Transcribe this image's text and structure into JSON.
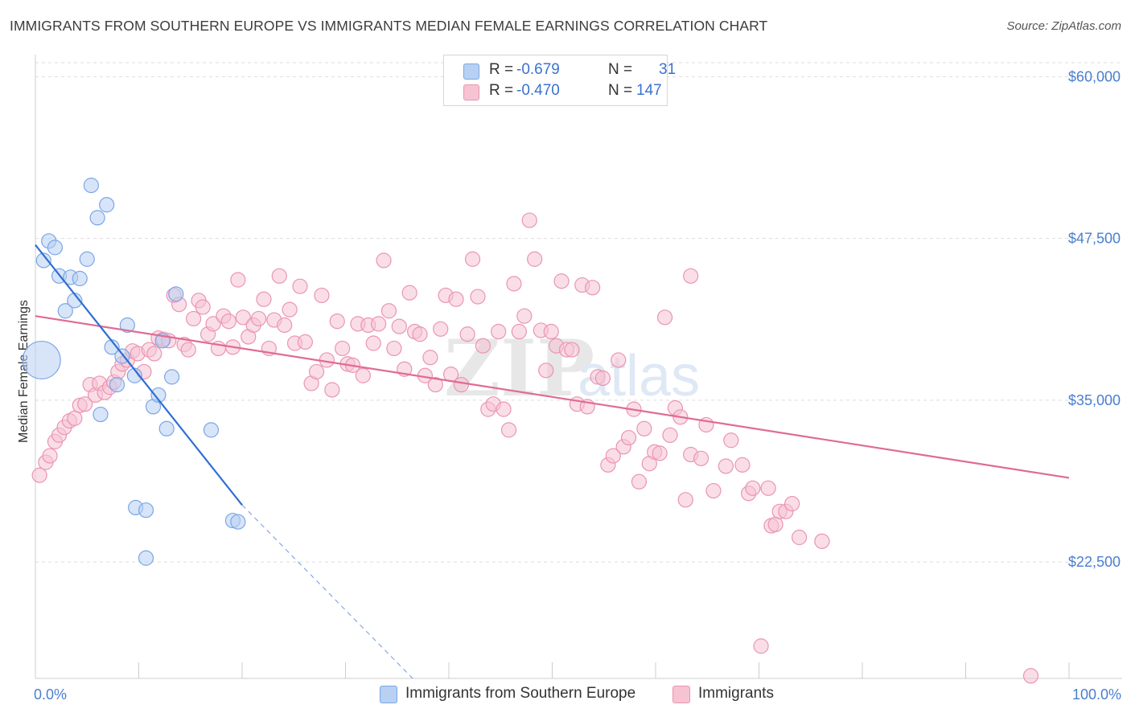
{
  "title": "IMMIGRANTS FROM SOUTHERN EUROPE VS IMMIGRANTS MEDIAN FEMALE EARNINGS CORRELATION CHART",
  "source": "Source: ZipAtlas.com",
  "watermark": {
    "zip": "ZIP",
    "atlas": "atlas"
  },
  "colors": {
    "blue_fill": "#b8d0f2",
    "blue_stroke": "#7aa6e6",
    "blue_line": "#2f6fd3",
    "pink_fill": "#f6c3d3",
    "pink_stroke": "#ea95b1",
    "pink_line": "#e06b96",
    "tick_color": "#4a7fd0",
    "grid": "#dddddd"
  },
  "legend": {
    "rows": [
      {
        "r_label": "R =",
        "r_value": "-0.679",
        "n_label": "N =",
        "n_value": "31",
        "color": "blue"
      },
      {
        "r_label": "R =",
        "r_value": "-0.470",
        "n_label": "N =",
        "n_value": "147",
        "color": "pink"
      }
    ]
  },
  "bottom_legend": {
    "items": [
      {
        "label": "Immigrants from Southern Europe",
        "color": "blue"
      },
      {
        "label": "Immigrants",
        "color": "pink"
      }
    ]
  },
  "chart_data": {
    "type": "scatter",
    "ylabel": "Median Female Earnings",
    "xlim": [
      0,
      100
    ],
    "ylim": [
      13500,
      61700
    ],
    "x_tick_labels": [
      {
        "value": 0,
        "label": "0.0%"
      },
      {
        "value": 100,
        "label": "100.0%"
      }
    ],
    "x_minor_ticks": [
      0,
      10,
      20,
      30,
      40,
      50,
      60,
      70,
      80,
      90,
      100
    ],
    "y_ticks": [
      {
        "value": 60000,
        "label": "$60,000"
      },
      {
        "value": 47500,
        "label": "$47,500"
      },
      {
        "value": 35000,
        "label": "$35,000"
      },
      {
        "value": 22500,
        "label": "$22,500"
      }
    ],
    "series": [
      {
        "name": "Immigrants from Southern Europe",
        "color": "blue",
        "trend": {
          "x0": 0,
          "y0": 47000,
          "x1": 20,
          "y1": 26900,
          "dash_to_x": 36.5,
          "dash_to_y": 13500
        },
        "points": [
          {
            "x": 0.6,
            "y": 38100,
            "s": 2.6
          },
          {
            "x": 0.8,
            "y": 45800,
            "s": 1
          },
          {
            "x": 1.3,
            "y": 47300,
            "s": 1
          },
          {
            "x": 1.9,
            "y": 46800,
            "s": 1
          },
          {
            "x": 2.3,
            "y": 44600,
            "s": 1
          },
          {
            "x": 2.9,
            "y": 41900,
            "s": 1
          },
          {
            "x": 3.4,
            "y": 44500,
            "s": 1
          },
          {
            "x": 3.8,
            "y": 42700,
            "s": 1
          },
          {
            "x": 4.3,
            "y": 44400,
            "s": 1
          },
          {
            "x": 5.0,
            "y": 45900,
            "s": 1
          },
          {
            "x": 5.4,
            "y": 51600,
            "s": 1
          },
          {
            "x": 6.0,
            "y": 49100,
            "s": 1
          },
          {
            "x": 6.9,
            "y": 50100,
            "s": 1
          },
          {
            "x": 6.3,
            "y": 33900,
            "s": 1
          },
          {
            "x": 7.4,
            "y": 39100,
            "s": 1
          },
          {
            "x": 7.9,
            "y": 36200,
            "s": 1
          },
          {
            "x": 8.4,
            "y": 38400,
            "s": 1
          },
          {
            "x": 8.9,
            "y": 40800,
            "s": 1
          },
          {
            "x": 9.7,
            "y": 26700,
            "s": 1
          },
          {
            "x": 9.6,
            "y": 36900,
            "s": 1
          },
          {
            "x": 10.7,
            "y": 26500,
            "s": 1
          },
          {
            "x": 10.7,
            "y": 22800,
            "s": 1
          },
          {
            "x": 11.4,
            "y": 34500,
            "s": 1
          },
          {
            "x": 11.9,
            "y": 35400,
            "s": 1
          },
          {
            "x": 12.3,
            "y": 39600,
            "s": 1
          },
          {
            "x": 12.7,
            "y": 32800,
            "s": 1
          },
          {
            "x": 13.2,
            "y": 36800,
            "s": 1
          },
          {
            "x": 13.6,
            "y": 43200,
            "s": 1
          },
          {
            "x": 17.0,
            "y": 32700,
            "s": 1
          },
          {
            "x": 19.1,
            "y": 25700,
            "s": 1
          },
          {
            "x": 19.6,
            "y": 25600,
            "s": 1
          }
        ]
      },
      {
        "name": "Immigrants",
        "color": "pink",
        "trend": {
          "x0": 0,
          "y0": 41500,
          "x1": 100,
          "y1": 29000
        },
        "points": [
          {
            "x": 0.4,
            "y": 29200
          },
          {
            "x": 1.0,
            "y": 30200
          },
          {
            "x": 1.4,
            "y": 30700
          },
          {
            "x": 1.9,
            "y": 31800
          },
          {
            "x": 2.3,
            "y": 32300
          },
          {
            "x": 2.8,
            "y": 32900
          },
          {
            "x": 3.3,
            "y": 33400
          },
          {
            "x": 3.8,
            "y": 33600
          },
          {
            "x": 4.3,
            "y": 34600
          },
          {
            "x": 4.8,
            "y": 34700
          },
          {
            "x": 5.3,
            "y": 36200
          },
          {
            "x": 5.8,
            "y": 35400
          },
          {
            "x": 6.2,
            "y": 36300
          },
          {
            "x": 6.7,
            "y": 35600
          },
          {
            "x": 7.2,
            "y": 36000
          },
          {
            "x": 7.6,
            "y": 36400
          },
          {
            "x": 8.0,
            "y": 37200
          },
          {
            "x": 8.4,
            "y": 37800
          },
          {
            "x": 8.9,
            "y": 38100
          },
          {
            "x": 9.4,
            "y": 38800
          },
          {
            "x": 9.9,
            "y": 38600
          },
          {
            "x": 10.5,
            "y": 37200
          },
          {
            "x": 11.0,
            "y": 38900
          },
          {
            "x": 11.5,
            "y": 38600
          },
          {
            "x": 11.9,
            "y": 39800
          },
          {
            "x": 12.4,
            "y": 39700
          },
          {
            "x": 12.9,
            "y": 39600
          },
          {
            "x": 13.4,
            "y": 43100
          },
          {
            "x": 13.9,
            "y": 42400
          },
          {
            "x": 14.4,
            "y": 39300
          },
          {
            "x": 14.8,
            "y": 38900
          },
          {
            "x": 15.3,
            "y": 41300
          },
          {
            "x": 15.8,
            "y": 42700
          },
          {
            "x": 16.2,
            "y": 42200
          },
          {
            "x": 16.7,
            "y": 40100
          },
          {
            "x": 17.2,
            "y": 40900
          },
          {
            "x": 17.7,
            "y": 39000
          },
          {
            "x": 18.2,
            "y": 41500
          },
          {
            "x": 18.7,
            "y": 41100
          },
          {
            "x": 19.1,
            "y": 39100
          },
          {
            "x": 19.6,
            "y": 44300
          },
          {
            "x": 20.1,
            "y": 41400
          },
          {
            "x": 20.6,
            "y": 39900
          },
          {
            "x": 21.1,
            "y": 40800
          },
          {
            "x": 21.6,
            "y": 41300
          },
          {
            "x": 22.1,
            "y": 42800
          },
          {
            "x": 22.6,
            "y": 39000
          },
          {
            "x": 23.1,
            "y": 41200
          },
          {
            "x": 23.6,
            "y": 44600
          },
          {
            "x": 24.1,
            "y": 40800
          },
          {
            "x": 24.6,
            "y": 42000
          },
          {
            "x": 25.1,
            "y": 39400
          },
          {
            "x": 25.6,
            "y": 43800
          },
          {
            "x": 26.1,
            "y": 39500
          },
          {
            "x": 26.7,
            "y": 36300
          },
          {
            "x": 27.2,
            "y": 37200
          },
          {
            "x": 27.7,
            "y": 43100
          },
          {
            "x": 28.2,
            "y": 38100
          },
          {
            "x": 28.7,
            "y": 35800
          },
          {
            "x": 29.2,
            "y": 41100
          },
          {
            "x": 29.7,
            "y": 39000
          },
          {
            "x": 30.2,
            "y": 37800
          },
          {
            "x": 30.7,
            "y": 37700
          },
          {
            "x": 31.2,
            "y": 40900
          },
          {
            "x": 31.7,
            "y": 36900
          },
          {
            "x": 32.2,
            "y": 40800
          },
          {
            "x": 32.7,
            "y": 39400
          },
          {
            "x": 33.2,
            "y": 40900
          },
          {
            "x": 33.7,
            "y": 45800
          },
          {
            "x": 34.2,
            "y": 41900
          },
          {
            "x": 34.7,
            "y": 39000
          },
          {
            "x": 35.2,
            "y": 40700
          },
          {
            "x": 35.7,
            "y": 37400
          },
          {
            "x": 36.2,
            "y": 43300
          },
          {
            "x": 36.7,
            "y": 40300
          },
          {
            "x": 37.2,
            "y": 40100
          },
          {
            "x": 37.7,
            "y": 36900
          },
          {
            "x": 38.2,
            "y": 38300
          },
          {
            "x": 38.7,
            "y": 36200
          },
          {
            "x": 39.2,
            "y": 40500
          },
          {
            "x": 39.7,
            "y": 43100
          },
          {
            "x": 40.2,
            "y": 37000
          },
          {
            "x": 40.7,
            "y": 42800
          },
          {
            "x": 41.2,
            "y": 36200
          },
          {
            "x": 41.8,
            "y": 40100
          },
          {
            "x": 42.3,
            "y": 45900
          },
          {
            "x": 42.8,
            "y": 43000
          },
          {
            "x": 43.3,
            "y": 39200
          },
          {
            "x": 43.8,
            "y": 34300
          },
          {
            "x": 44.3,
            "y": 34700
          },
          {
            "x": 44.8,
            "y": 40300
          },
          {
            "x": 45.3,
            "y": 34300
          },
          {
            "x": 45.8,
            "y": 32700
          },
          {
            "x": 46.3,
            "y": 44000
          },
          {
            "x": 46.8,
            "y": 40300
          },
          {
            "x": 47.3,
            "y": 41500
          },
          {
            "x": 47.8,
            "y": 48900
          },
          {
            "x": 48.3,
            "y": 45900
          },
          {
            "x": 48.9,
            "y": 40400
          },
          {
            "x": 49.4,
            "y": 37300
          },
          {
            "x": 49.9,
            "y": 40300
          },
          {
            "x": 50.4,
            "y": 39200
          },
          {
            "x": 50.9,
            "y": 44200
          },
          {
            "x": 51.4,
            "y": 38900
          },
          {
            "x": 51.9,
            "y": 38900
          },
          {
            "x": 52.4,
            "y": 34700
          },
          {
            "x": 52.9,
            "y": 43900
          },
          {
            "x": 53.4,
            "y": 34500
          },
          {
            "x": 53.9,
            "y": 43700
          },
          {
            "x": 54.4,
            "y": 36800
          },
          {
            "x": 54.9,
            "y": 36700
          },
          {
            "x": 55.4,
            "y": 30000
          },
          {
            "x": 55.9,
            "y": 30700
          },
          {
            "x": 56.4,
            "y": 38100
          },
          {
            "x": 56.9,
            "y": 31400
          },
          {
            "x": 57.4,
            "y": 32100
          },
          {
            "x": 57.9,
            "y": 34300
          },
          {
            "x": 58.4,
            "y": 28700
          },
          {
            "x": 58.9,
            "y": 32800
          },
          {
            "x": 59.4,
            "y": 30100
          },
          {
            "x": 59.9,
            "y": 31000
          },
          {
            "x": 60.4,
            "y": 30900
          },
          {
            "x": 60.9,
            "y": 41400
          },
          {
            "x": 61.4,
            "y": 32300
          },
          {
            "x": 61.9,
            "y": 34400
          },
          {
            "x": 62.4,
            "y": 33700
          },
          {
            "x": 62.9,
            "y": 27300
          },
          {
            "x": 63.4,
            "y": 44600
          },
          {
            "x": 63.4,
            "y": 30800
          },
          {
            "x": 64.4,
            "y": 30500
          },
          {
            "x": 64.9,
            "y": 33100
          },
          {
            "x": 65.6,
            "y": 28000
          },
          {
            "x": 66.8,
            "y": 29900
          },
          {
            "x": 67.3,
            "y": 31900
          },
          {
            "x": 68.4,
            "y": 30000
          },
          {
            "x": 69.0,
            "y": 27800
          },
          {
            "x": 69.4,
            "y": 28200
          },
          {
            "x": 70.2,
            "y": 16000
          },
          {
            "x": 70.9,
            "y": 28200
          },
          {
            "x": 71.2,
            "y": 25300
          },
          {
            "x": 71.6,
            "y": 25400
          },
          {
            "x": 72.0,
            "y": 26400
          },
          {
            "x": 72.6,
            "y": 26400
          },
          {
            "x": 73.2,
            "y": 27000
          },
          {
            "x": 73.9,
            "y": 24400
          },
          {
            "x": 76.1,
            "y": 24100
          },
          {
            "x": 96.3,
            "y": 13700
          }
        ]
      }
    ]
  }
}
